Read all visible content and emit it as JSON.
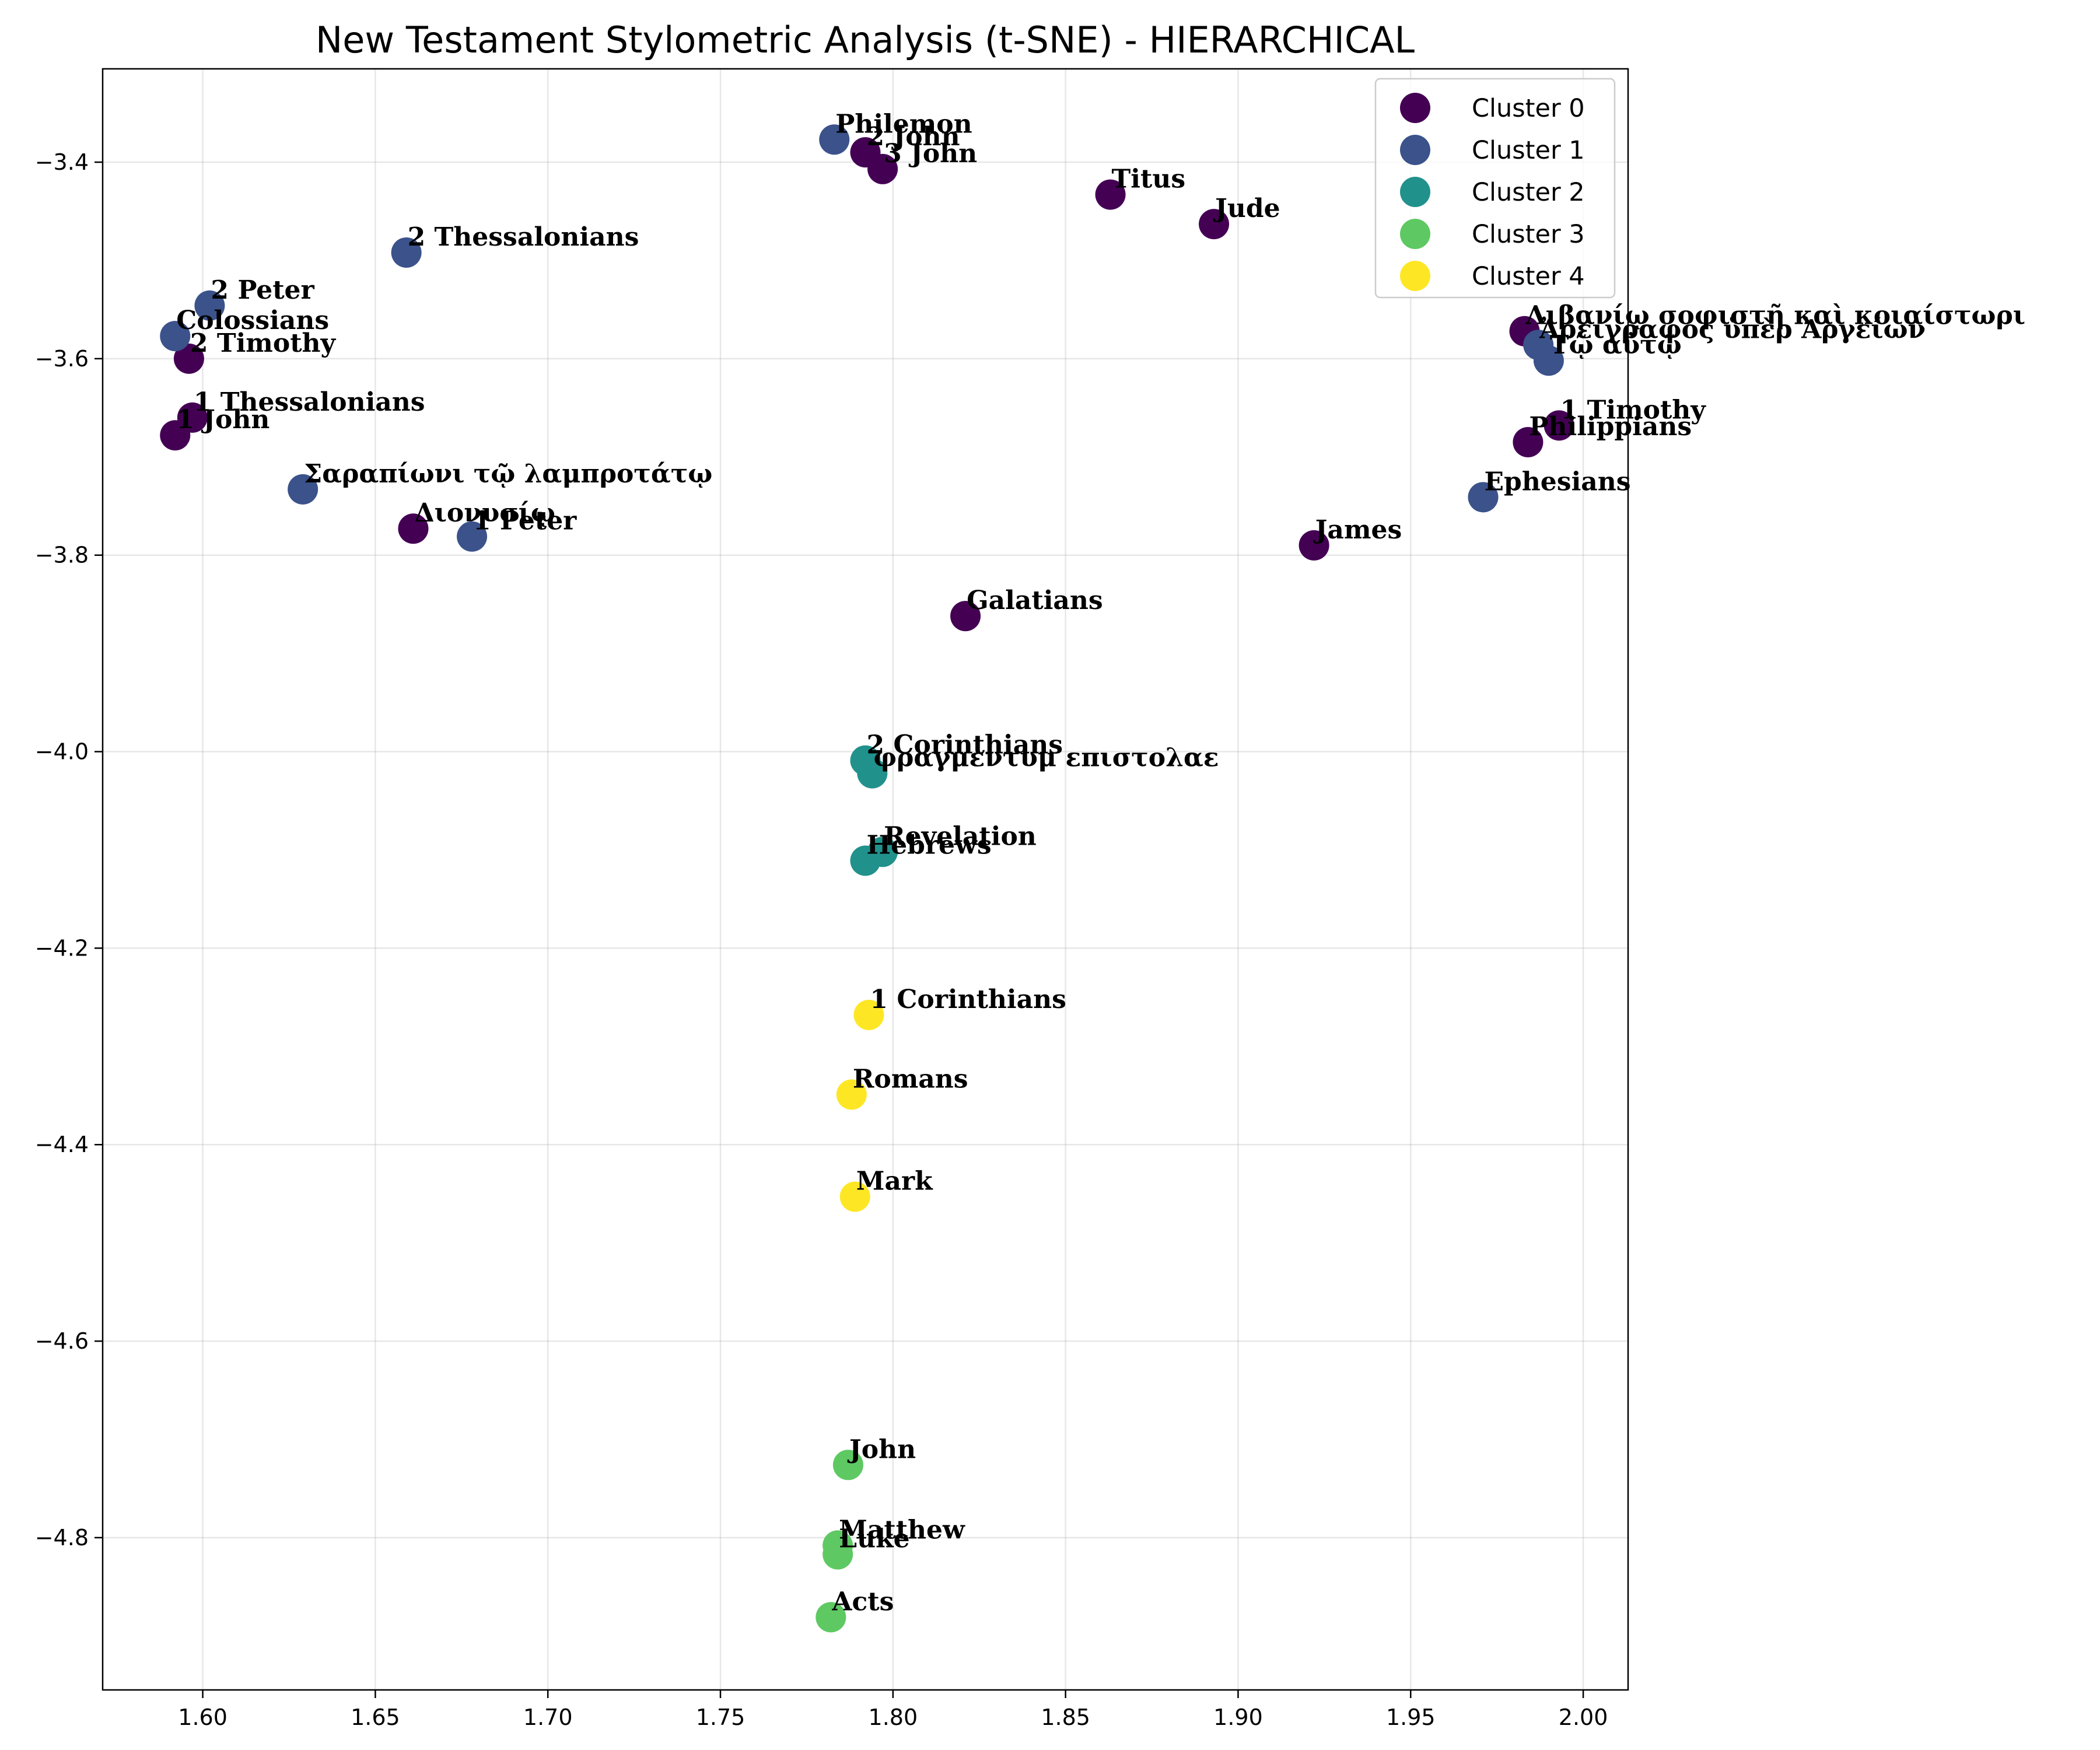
{
  "chart_data": {
    "type": "scatter",
    "title": "New Testament Stylometric Analysis (t-SNE) - HIERARCHICAL",
    "xlabel": "",
    "ylabel": "",
    "xlim": [
      1.571,
      2.013
    ],
    "ylim": [
      -4.955,
      -3.305
    ],
    "xticks": [
      1.6,
      1.65,
      1.7,
      1.75,
      1.8,
      1.85,
      1.9,
      1.95,
      2.0
    ],
    "xtick_labels": [
      "1.60",
      "1.65",
      "1.70",
      "1.75",
      "1.80",
      "1.85",
      "1.90",
      "1.95",
      "2.00"
    ],
    "yticks": [
      -3.4,
      -3.6,
      -3.8,
      -4.0,
      -4.2,
      -4.4,
      -4.6,
      -4.8
    ],
    "ytick_labels": [
      "−3.4",
      "−3.6",
      "−3.8",
      "−4.0",
      "−4.2",
      "−4.4",
      "−4.6",
      "−4.8"
    ],
    "grid": true,
    "legend_position": "top-right",
    "series": [
      {
        "name": "Cluster 0",
        "color": "#440154",
        "points": [
          {
            "label": "3 John",
            "x": 1.797,
            "y": -3.407
          },
          {
            "label": "2 John",
            "x": 1.792,
            "y": -3.39
          },
          {
            "label": "Titus",
            "x": 1.863,
            "y": -3.433
          },
          {
            "label": "Jude",
            "x": 1.893,
            "y": -3.463
          },
          {
            "label": "2 Timothy",
            "x": 1.596,
            "y": -3.6
          },
          {
            "label": "1 Thessalonians",
            "x": 1.597,
            "y": -3.66
          },
          {
            "label": "1 John",
            "x": 1.592,
            "y": -3.678
          },
          {
            "label": "Διονυσίῳ",
            "x": 1.661,
            "y": -3.773
          },
          {
            "label": "Λιβανίῳ σοφιστῇ καὶ κοιαίστωρι",
            "x": 1.983,
            "y": -3.572
          },
          {
            "label": "1 Timothy",
            "x": 1.993,
            "y": -3.668
          },
          {
            "label": "Philippians",
            "x": 1.984,
            "y": -3.685
          },
          {
            "label": "James",
            "x": 1.922,
            "y": -3.79
          },
          {
            "label": "Galatians",
            "x": 1.821,
            "y": -3.862
          }
        ]
      },
      {
        "name": "Cluster 1",
        "color": "#3b528b",
        "points": [
          {
            "label": "Philemon",
            "x": 1.783,
            "y": -3.377
          },
          {
            "label": "2 Thessalonians",
            "x": 1.659,
            "y": -3.492
          },
          {
            "label": "2 Peter",
            "x": 1.602,
            "y": -3.546
          },
          {
            "label": "Colossians",
            "x": 1.592,
            "y": -3.577
          },
          {
            "label": "Σαραπίωνι τῷ λαμπροτάτῳ",
            "x": 1.629,
            "y": -3.733
          },
          {
            "label": "1 Peter",
            "x": 1.678,
            "y": -3.781
          },
          {
            "label": "Ἀρειγραφος ὑπὲρ Ἀργείων",
            "x": 1.987,
            "y": -3.586
          },
          {
            "label": "Τῷ αὐτῷ",
            "x": 1.99,
            "y": -3.602
          },
          {
            "label": "Ephesians",
            "x": 1.971,
            "y": -3.741
          }
        ]
      },
      {
        "name": "Cluster 2",
        "color": "#21918c",
        "points": [
          {
            "label": "2 Corinthians",
            "x": 1.792,
            "y": -4.009
          },
          {
            "label": "φραγμεντυμ επιστολαε",
            "x": 1.794,
            "y": -4.022
          },
          {
            "label": "Revelation",
            "x": 1.797,
            "y": -4.102
          },
          {
            "label": "Hebrews",
            "x": 1.792,
            "y": -4.111
          }
        ]
      },
      {
        "name": "Cluster 3",
        "color": "#5ec962",
        "points": [
          {
            "label": "John",
            "x": 1.787,
            "y": -4.726
          },
          {
            "label": "Matthew",
            "x": 1.784,
            "y": -4.808
          },
          {
            "label": "Luke",
            "x": 1.784,
            "y": -4.817
          },
          {
            "label": "Acts",
            "x": 1.782,
            "y": -4.881
          }
        ]
      },
      {
        "name": "Cluster 4",
        "color": "#fde725",
        "points": [
          {
            "label": "1 Corinthians",
            "x": 1.793,
            "y": -4.268
          },
          {
            "label": "Romans",
            "x": 1.788,
            "y": -4.349
          },
          {
            "label": "Mark",
            "x": 1.789,
            "y": -4.453
          }
        ]
      }
    ]
  }
}
